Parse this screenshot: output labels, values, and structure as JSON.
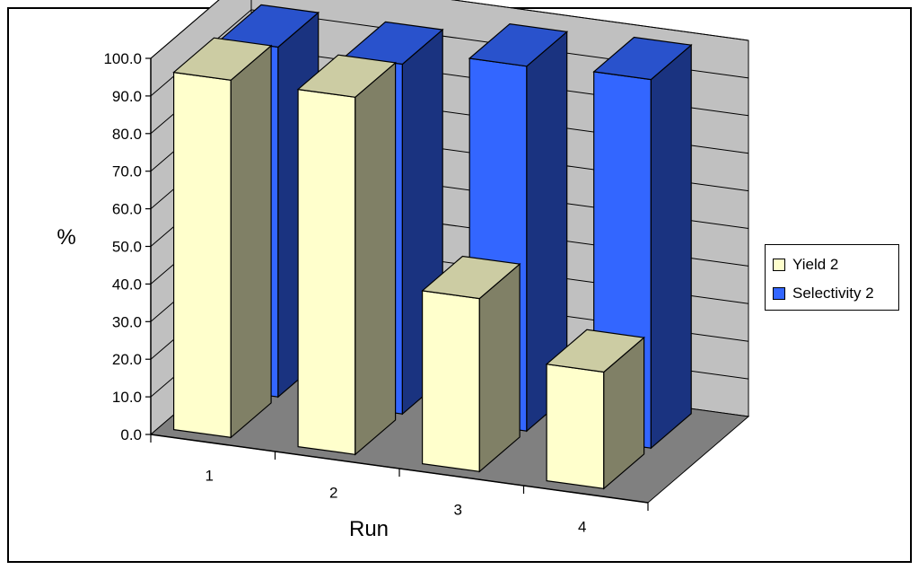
{
  "chart_data": {
    "type": "bar",
    "style": "3d-clustered-column",
    "categories": [
      "1",
      "2",
      "3",
      "4"
    ],
    "xlabel": "Run",
    "ylabel": "%",
    "ylim": [
      0,
      100
    ],
    "yticks": [
      "0.0",
      "10.0",
      "20.0",
      "30.0",
      "40.0",
      "50.0",
      "60.0",
      "70.0",
      "80.0",
      "90.0",
      "100.0"
    ],
    "grid": true,
    "legend_position": "right",
    "series": [
      {
        "name": "Yield 2",
        "values": [
          95,
          95,
          46,
          31
        ],
        "color": "#ffffcc"
      },
      {
        "name": "Selectivity 2",
        "values": [
          93,
          93,
          97,
          98
        ],
        "color": "#3366ff"
      }
    ]
  }
}
